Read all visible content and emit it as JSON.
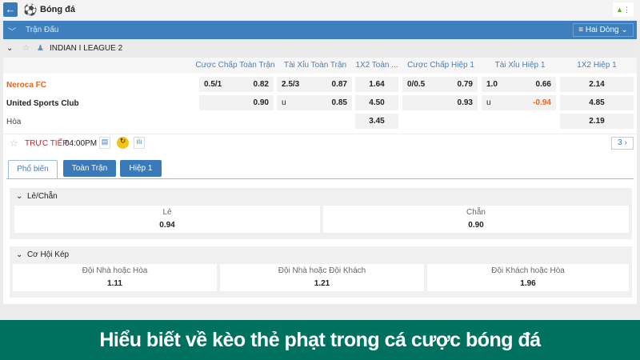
{
  "header": {
    "title": "Bóng đá",
    "back_icon": "arrow-left-icon",
    "sport_icon": "soccer-ball-icon"
  },
  "section_bar": {
    "label": "Trận Đấu",
    "view_select": "Hai Dòng"
  },
  "league": {
    "name": "INDIAN I LEAGUE 2"
  },
  "columns": [
    "Cược Chấp Toàn Trận",
    "Tài Xỉu Toàn Trận",
    "1X2 Toàn ...",
    "Cược Chấp Hiệp 1",
    "Tài Xỉu Hiệp 1",
    "1X2 Hiệp 1"
  ],
  "rows": [
    {
      "team": "Neroca FC",
      "hdp_line": "0.5/1",
      "hdp_odds": "0.82",
      "ou_line": "2.5/3",
      "ou_odds": "0.87",
      "x12": "1.64",
      "h1_hdp_line": "0/0.5",
      "h1_hdp_odds": "0.79",
      "h1_ou_line": "1.0",
      "h1_ou_odds": "0.66",
      "h1_x12": "2.14"
    },
    {
      "team": "United Sports Club",
      "hdp_odds": "0.90",
      "ou_line": "u",
      "ou_odds": "0.85",
      "x12": "4.50",
      "h1_hdp_odds": "0.93",
      "h1_ou_line": "u",
      "h1_ou_odds": "-0.94",
      "h1_x12": "4.85"
    },
    {
      "team": "Hòa",
      "x12": "3.45",
      "h1_x12": "2.19"
    }
  ],
  "live": {
    "status": "TRỰC TIẾP",
    "time": "04:00PM",
    "more_count": "3"
  },
  "tabs": [
    "Phổ biến",
    "Toàn Trận",
    "Hiệp 1"
  ],
  "odd_even": {
    "title": "Lẻ/Chẵn",
    "options": [
      {
        "name": "Lẻ",
        "odds": "0.94"
      },
      {
        "name": "Chẵn",
        "odds": "0.90"
      }
    ]
  },
  "double_chance": {
    "title": "Cơ Hội Kép",
    "options": [
      {
        "name": "Đội Nhà hoặc Hòa",
        "odds": "1.11"
      },
      {
        "name": "Đội Nhà hoặc Đội Khách",
        "odds": "1.21"
      },
      {
        "name": "Đội Khách hoặc Hòa",
        "odds": "1.96"
      }
    ]
  },
  "banner": "Hiểu biết về kèo thẻ phạt trong cá cược bóng đá",
  "colors": {
    "accent": "#3a7ab8",
    "home_team": "#e8641b",
    "negative_odds": "#e8641b",
    "live": "#c0282d",
    "banner": "#00705f"
  }
}
